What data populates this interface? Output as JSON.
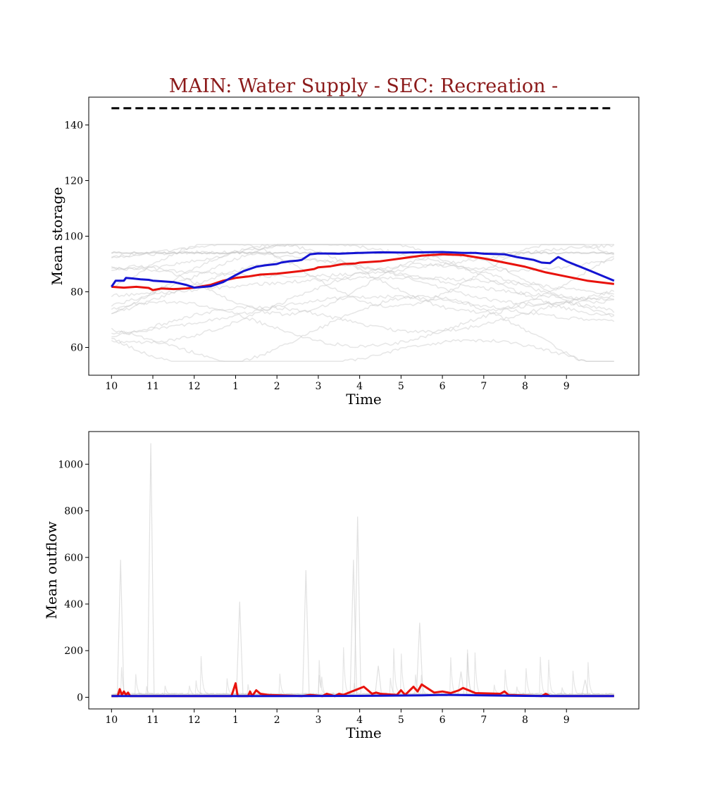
{
  "title": "MAIN: Water Supply - SEC: Recreation -",
  "colors": {
    "title": "#8b1a1a",
    "ensemble": "#c8c8c8",
    "red_series": "#e8120c",
    "blue_series": "#1414d2",
    "capacity_line": "#000000"
  },
  "chart_data": [
    {
      "type": "line",
      "xlabel": "Time",
      "ylabel": "Mean storage",
      "xlim": [
        -0.55,
        12.75
      ],
      "ylim": [
        50,
        150
      ],
      "x_ticks": [
        0,
        1,
        2,
        3,
        4,
        5,
        6,
        7,
        8,
        9,
        10,
        11
      ],
      "x_tick_labels": [
        "10",
        "11",
        "12",
        "1",
        "2",
        "3",
        "4",
        "5",
        "6",
        "7",
        "8",
        "9"
      ],
      "y_ticks": [
        60,
        80,
        100,
        120,
        140
      ],
      "grid": false,
      "reference_line": {
        "style": "dashed",
        "y": 146,
        "x": [
          0,
          12.15
        ]
      },
      "series": [
        {
          "role": "red",
          "x": [
            0,
            0.3,
            0.6,
            0.9,
            1.0,
            1.2,
            1.5,
            1.8,
            2.0,
            2.4,
            2.7,
            3.0,
            3.3,
            3.6,
            4.0,
            4.3,
            4.6,
            4.9,
            5.0,
            5.3,
            5.6,
            5.9,
            6.0,
            6.5,
            7.0,
            7.5,
            8.0,
            8.5,
            9.0,
            9.5,
            10.0,
            10.5,
            11.0,
            11.5,
            12.15
          ],
          "y": [
            81.8,
            81.5,
            81.8,
            81.4,
            80.6,
            81.2,
            81.0,
            81.2,
            81.5,
            82.5,
            84.0,
            85.0,
            85.5,
            86.2,
            86.5,
            87.0,
            87.5,
            88.2,
            88.8,
            89.2,
            90.0,
            90.2,
            90.5,
            91.0,
            92.0,
            93.0,
            93.5,
            93.2,
            92.0,
            90.5,
            89.0,
            87.0,
            85.5,
            84.0,
            82.8
          ]
        },
        {
          "role": "blue",
          "x": [
            0,
            0.1,
            0.3,
            0.35,
            0.5,
            0.7,
            0.9,
            1.0,
            1.2,
            1.5,
            1.8,
            2.0,
            2.4,
            2.7,
            3.0,
            3.2,
            3.3,
            3.5,
            3.7,
            4.0,
            4.1,
            4.3,
            4.5,
            4.6,
            4.8,
            5.0,
            5.5,
            6.0,
            6.5,
            7.0,
            7.5,
            8.0,
            8.5,
            8.8,
            9.0,
            9.5,
            9.8,
            10.2,
            10.4,
            10.6,
            10.8,
            11.0,
            11.5,
            12.15
          ],
          "y": [
            81.8,
            84.0,
            84.0,
            85.0,
            84.8,
            84.5,
            84.3,
            84.0,
            83.8,
            83.5,
            82.5,
            81.5,
            82.0,
            83.5,
            86.0,
            87.5,
            88.0,
            89.0,
            89.5,
            90.0,
            90.5,
            91.0,
            91.2,
            91.5,
            93.5,
            93.8,
            93.7,
            94.0,
            94.2,
            94.1,
            94.2,
            94.3,
            94.0,
            94.0,
            93.7,
            93.5,
            92.5,
            91.5,
            90.5,
            90.3,
            92.5,
            91.0,
            88.0,
            84.0
          ]
        }
      ]
    },
    {
      "type": "line",
      "xlabel": "Time",
      "ylabel": "Mean outflow",
      "xlim": [
        -0.55,
        12.75
      ],
      "ylim": [
        -50,
        1140
      ],
      "x_ticks": [
        0,
        1,
        2,
        3,
        4,
        5,
        6,
        7,
        8,
        9,
        10,
        11
      ],
      "x_tick_labels": [
        "10",
        "11",
        "12",
        "1",
        "2",
        "3",
        "4",
        "5",
        "6",
        "7",
        "8",
        "9"
      ],
      "y_ticks": [
        0,
        200,
        400,
        600,
        800,
        1000
      ],
      "grid": false,
      "series": [
        {
          "role": "red",
          "x": [
            0,
            0.15,
            0.2,
            0.25,
            0.3,
            0.35,
            0.4,
            0.45,
            0.9,
            1.0,
            1.3,
            2.5,
            2.9,
            3.0,
            3.05,
            3.3,
            3.35,
            3.4,
            3.5,
            3.6,
            3.8,
            4.6,
            4.8,
            5.1,
            5.2,
            5.4,
            5.5,
            5.6,
            6.1,
            6.2,
            6.3,
            6.4,
            6.5,
            6.9,
            7.0,
            7.1,
            7.3,
            7.4,
            7.5,
            7.8,
            8.0,
            8.2,
            8.4,
            8.5,
            8.8,
            9.4,
            9.5,
            9.6,
            10.4,
            10.5,
            10.6,
            11.0,
            11.5,
            12.15
          ],
          "y": [
            5,
            5,
            35,
            10,
            25,
            10,
            20,
            5,
            5,
            5,
            5,
            5,
            5,
            60,
            5,
            5,
            25,
            5,
            30,
            15,
            10,
            5,
            10,
            5,
            15,
            5,
            15,
            10,
            45,
            30,
            15,
            20,
            15,
            10,
            30,
            10,
            45,
            25,
            55,
            20,
            25,
            18,
            30,
            40,
            18,
            15,
            25,
            10,
            5,
            15,
            5,
            5,
            5,
            5
          ]
        },
        {
          "role": "blue",
          "x": [
            0,
            2.0,
            4.0,
            6.0,
            7.5,
            8.0,
            9.0,
            10.0,
            11.0,
            12.15
          ],
          "y": [
            5,
            5,
            5,
            6,
            8,
            10,
            8,
            6,
            5,
            5
          ]
        }
      ]
    }
  ]
}
